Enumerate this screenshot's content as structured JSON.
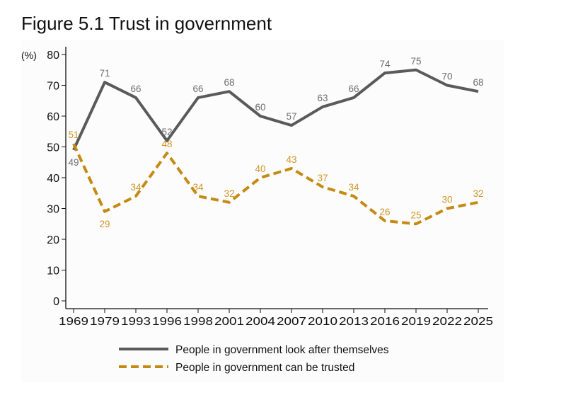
{
  "title": "Figure 5.1 Trust in government",
  "chart_data": {
    "type": "line",
    "title": "Figure 5.1 Trust in government",
    "ylabel": "(%)",
    "xlabel": "",
    "ylim": [
      0,
      80
    ],
    "yticks": [
      0,
      10,
      20,
      30,
      40,
      50,
      60,
      70,
      80
    ],
    "grid": false,
    "legend_position": "bottom",
    "categories": [
      "1969",
      "1979",
      "1993",
      "1996",
      "1998",
      "2001",
      "2004",
      "2007",
      "2010",
      "2013",
      "2016",
      "2019",
      "2022",
      "2025"
    ],
    "series": [
      {
        "name": "People in government look after themselves",
        "color": "#5a5a5a",
        "label_color": "#6f6f6f",
        "style": "solid",
        "values": [
          49,
          71,
          66,
          52,
          66,
          68,
          60,
          57,
          63,
          66,
          74,
          75,
          70,
          68
        ]
      },
      {
        "name": "People in government can be trusted",
        "color": "#c48a12",
        "label_color": "#cf9626",
        "style": "dashed",
        "values": [
          51,
          29,
          34,
          48,
          34,
          32,
          40,
          43,
          37,
          34,
          26,
          25,
          30,
          32
        ]
      }
    ]
  }
}
